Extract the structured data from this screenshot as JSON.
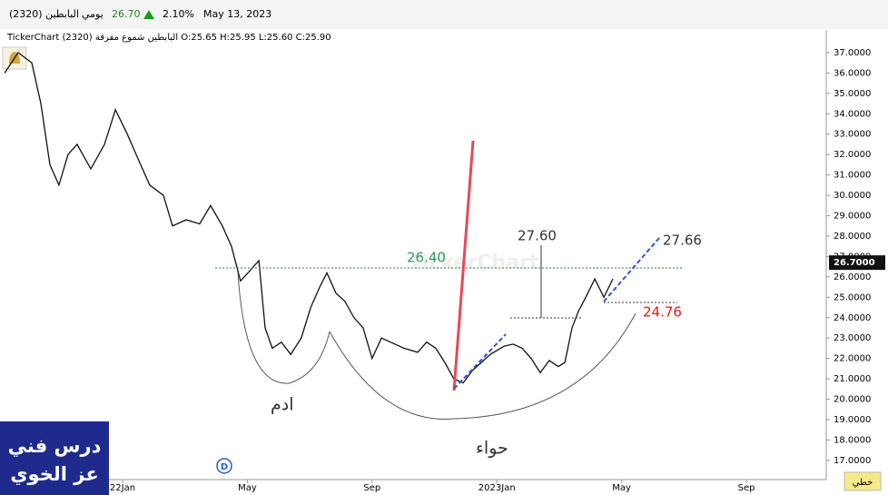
{
  "header": {
    "symbol": "(2320) البابطين",
    "period": "يومي",
    "price": "26.70",
    "change": "2.10%",
    "date": "May 13, 2023",
    "info": "TickerChart البابطين شموع مفرقة (2320) O:25.65 H:25.95 L:25.60 C:25.90"
  },
  "chart_data": {
    "type": "line",
    "color": "#111111",
    "x": [
      -3.78,
      -3.35,
      -2.91,
      -2.62,
      -2.33,
      -2.04,
      -1.75,
      -1.46,
      -1.02,
      -0.58,
      -0.23,
      0.15,
      0.58,
      0.87,
      1.31,
      1.6,
      2.04,
      2.47,
      2.82,
      3.2,
      3.49,
      3.78,
      4.08,
      4.37,
      4.57,
      4.8,
      5.09,
      5.39,
      5.73,
      6.03,
      6.32,
      6.55,
      6.84,
      7.13,
      7.42,
      7.71,
      8.0,
      8.3,
      8.59,
      9.02,
      9.46,
      9.75,
      10.04,
      10.33,
      10.62,
      10.92,
      11.21,
      11.5,
      11.79,
      12.23,
      12.52,
      12.81,
      13.1,
      13.39,
      13.68,
      13.97,
      14.18,
      14.41,
      14.61,
      14.85,
      15.14,
      15.43,
      15.72
    ],
    "values": [
      36.0,
      37.0,
      36.5,
      34.5,
      31.5,
      30.5,
      32.0,
      32.5,
      31.3,
      32.5,
      34.2,
      33.0,
      31.5,
      30.5,
      30.0,
      28.5,
      28.8,
      28.6,
      29.5,
      28.5,
      27.5,
      25.8,
      26.3,
      26.8,
      23.5,
      22.5,
      22.8,
      22.2,
      23.0,
      24.5,
      25.5,
      26.2,
      25.2,
      24.8,
      24.0,
      23.5,
      22.0,
      23.0,
      22.8,
      22.5,
      22.3,
      22.8,
      22.5,
      21.8,
      21.0,
      20.8,
      21.4,
      21.8,
      22.2,
      22.6,
      22.7,
      22.5,
      22.0,
      21.3,
      21.9,
      21.6,
      21.8,
      23.5,
      24.3,
      25.0,
      25.9,
      25.0,
      25.9
    ],
    "xlim": [
      -3.93,
      22.56
    ],
    "xticks": [
      {
        "value": 0,
        "label": "22Jan"
      },
      {
        "value": 4,
        "label": "May"
      },
      {
        "value": 8,
        "label": "Sep"
      },
      {
        "value": 12,
        "label": "2023Jan"
      },
      {
        "value": 16,
        "label": "May"
      },
      {
        "value": 20,
        "label": "Sep"
      }
    ],
    "ylim": [
      16.06,
      38.11
    ],
    "yticks": [
      {
        "value": 17,
        "label": "17.0000"
      },
      {
        "value": 18,
        "label": "18.0000"
      },
      {
        "value": 19,
        "label": "19.0000"
      },
      {
        "value": 20,
        "label": "20.0000"
      },
      {
        "value": 21,
        "label": "21.0000"
      },
      {
        "value": 22,
        "label": "22.0000"
      },
      {
        "value": 23,
        "label": "23.0000"
      },
      {
        "value": 24,
        "label": "24.0000"
      },
      {
        "value": 25,
        "label": "25.0000"
      },
      {
        "value": 26,
        "label": "26.0000"
      },
      {
        "value": 27,
        "label": "27.0000"
      },
      {
        "value": 28,
        "label": "28.0000"
      },
      {
        "value": 29,
        "label": "29.0000"
      },
      {
        "value": 30,
        "label": "30.0000"
      },
      {
        "value": 31,
        "label": "31.0000"
      },
      {
        "value": 32,
        "label": "32.0000"
      },
      {
        "value": 33,
        "label": "33.0000"
      },
      {
        "value": 34,
        "label": "34.0000"
      },
      {
        "value": 35,
        "label": "35.0000"
      },
      {
        "value": 36,
        "label": "36.0000"
      },
      {
        "value": 37,
        "label": "37.0000"
      }
    ],
    "last_price": {
      "value": 26.7,
      "label": "26.7000"
    },
    "annotations": {
      "neckline": "26.40",
      "target": "27.60",
      "upper": "27.66",
      "lower": "24.76",
      "adam": "ادم",
      "eve": "حواء"
    },
    "watermark": "TickerChart",
    "event_marker": "D",
    "chart_mode": "خطي",
    "caption": [
      "درس فني",
      "عز الخوي"
    ]
  }
}
